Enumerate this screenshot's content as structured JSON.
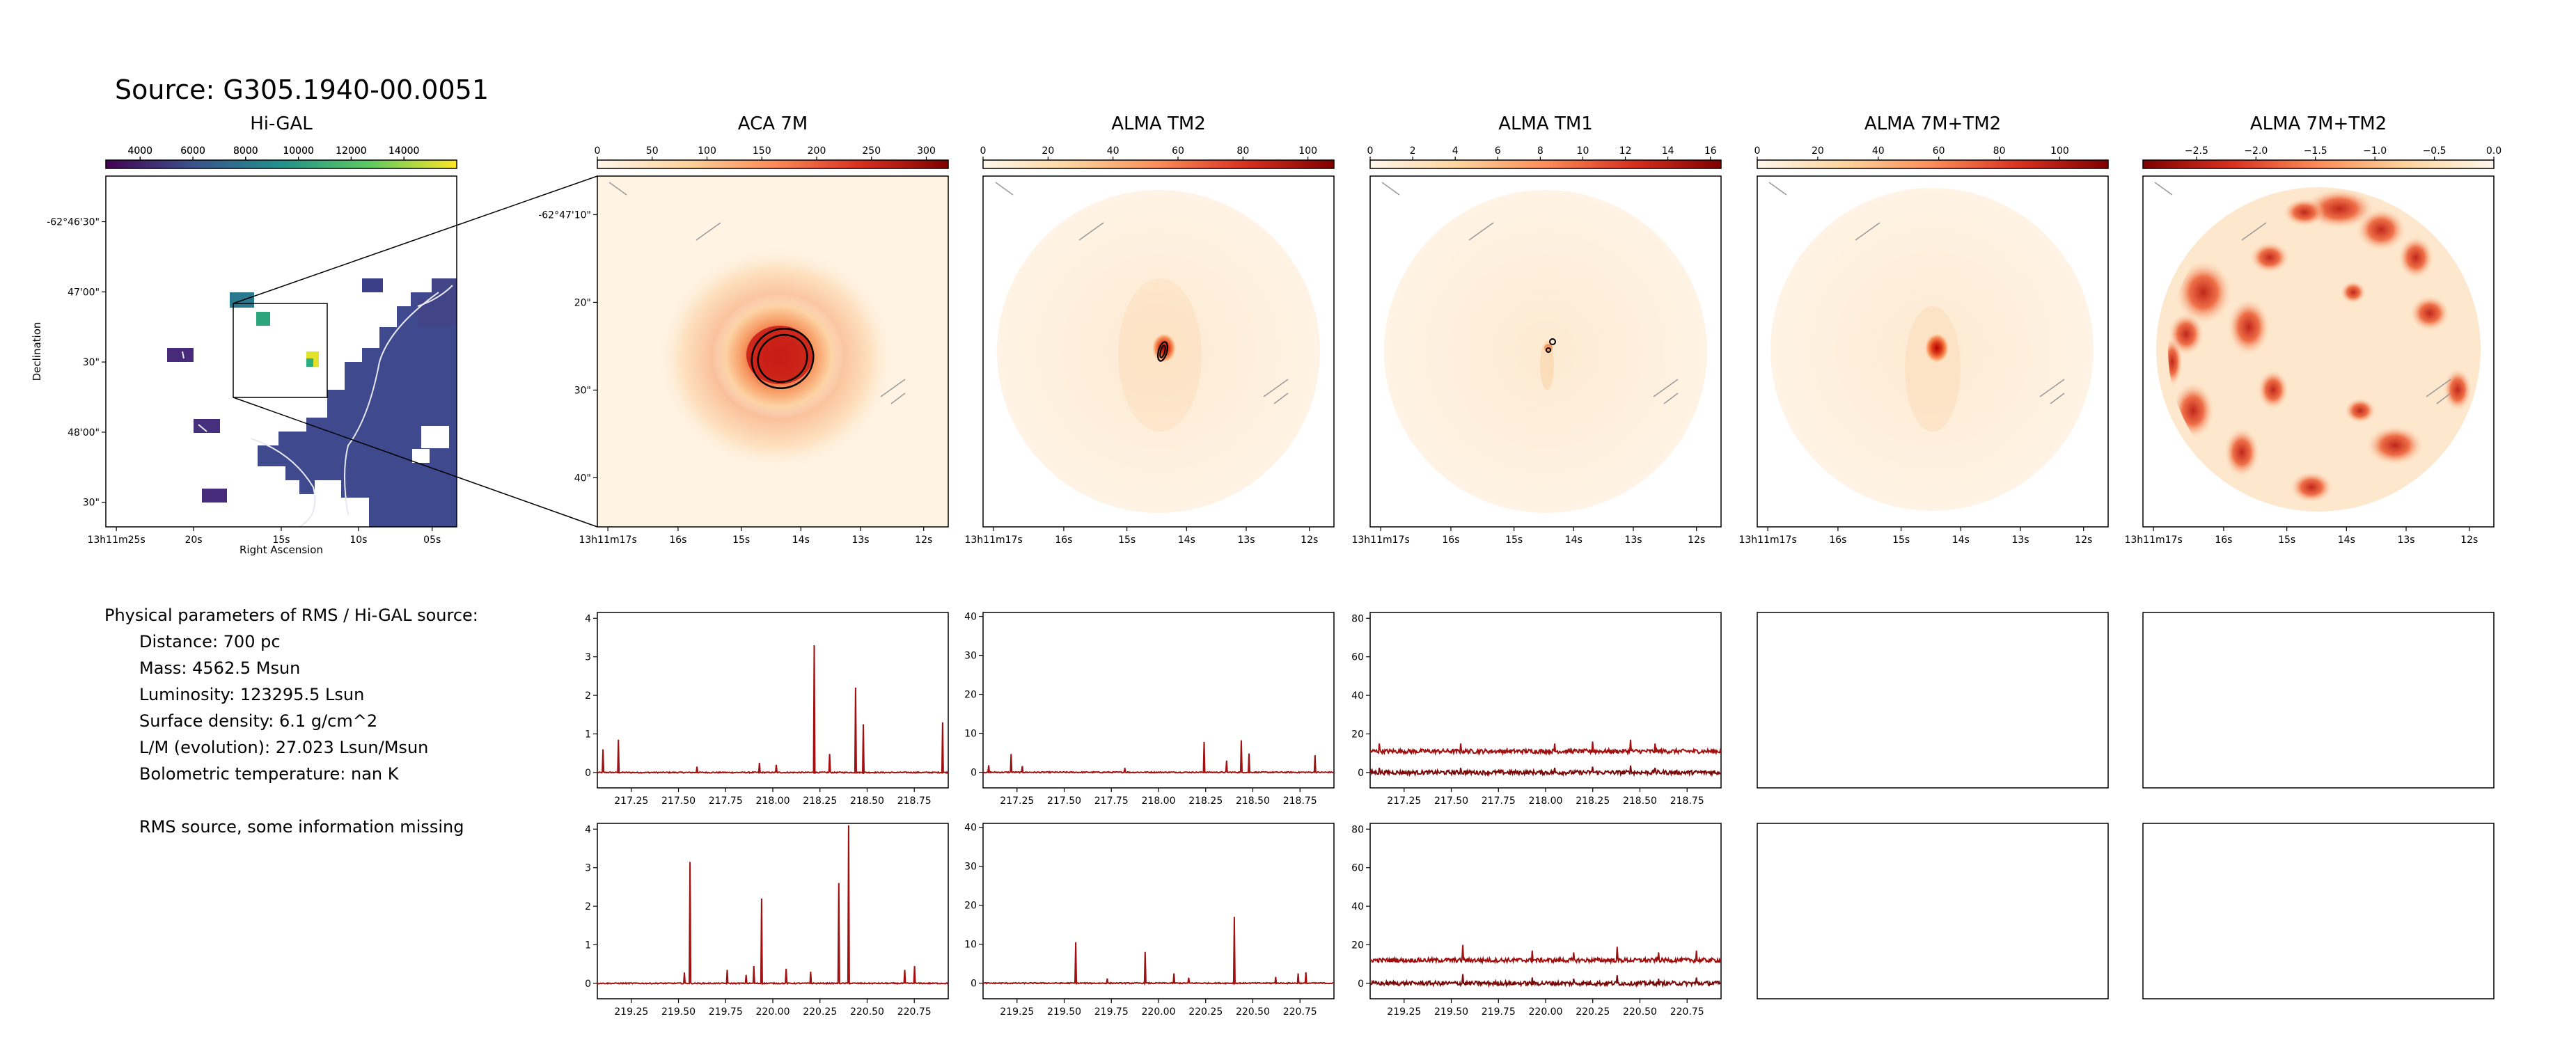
{
  "figure_title": "Source: G305.1940-00.0051",
  "info": {
    "heading": "Physical parameters of RMS / Hi-GAL source:",
    "lines": [
      "Distance: 700 pc",
      "Mass: 4562.5 Msun",
      "Luminosity: 123295.5 Lsun",
      "Surface density: 6.1 g/cm^2",
      "L/M (evolution): 27.023 Lsun/Msun",
      "Bolometric temperature: nan K"
    ],
    "note": "RMS source, some information missing"
  },
  "colormaps": {
    "viridis": [
      "#440154",
      "#3b528b",
      "#21918c",
      "#5ec962",
      "#fde725"
    ],
    "orrd": [
      "#fff7ec",
      "#fdd49e",
      "#fc8d59",
      "#d7301f",
      "#7f0000"
    ],
    "spectrum_line": "#a01010"
  },
  "chart_data": [
    {
      "type": "heatmap",
      "panel": "Hi-GAL",
      "title": "Hi-GAL",
      "colorbar_ticks": [
        "4000",
        "6000",
        "8000",
        "10000",
        "12000",
        "14000"
      ],
      "colorbar_range": [
        2700,
        16000
      ],
      "xlabel": "Right Ascension",
      "ylabel": "Declination",
      "x_ticks": [
        "13h11m25s",
        "20s",
        "15s",
        "10s",
        "05s"
      ],
      "y_ticks": [
        "-62°46'30\"",
        "47'00\"",
        "30\"",
        "48'00\"",
        "30\""
      ],
      "colormap": "viridis"
    },
    {
      "type": "heatmap",
      "panel": "ACA 7M",
      "title": "ACA 7M",
      "colorbar_ticks": [
        "0",
        "50",
        "100",
        "150",
        "200",
        "250",
        "300"
      ],
      "colorbar_range": [
        0,
        320
      ],
      "x_ticks": [
        "13h11m17s",
        "16s",
        "15s",
        "14s",
        "13s",
        "12s"
      ],
      "y_ticks": [
        "-62°47'10\"",
        "20\"",
        "30\"",
        "40\""
      ],
      "colormap": "orrd"
    },
    {
      "type": "heatmap",
      "panel": "ALMA TM2",
      "title": "ALMA TM2",
      "colorbar_ticks": [
        "0",
        "20",
        "40",
        "60",
        "80",
        "100"
      ],
      "colorbar_range": [
        0,
        108
      ],
      "x_ticks": [
        "13h11m17s",
        "16s",
        "15s",
        "14s",
        "13s",
        "12s"
      ],
      "colormap": "orrd"
    },
    {
      "type": "heatmap",
      "panel": "ALMA TM1",
      "title": "ALMA TM1",
      "colorbar_ticks": [
        "0",
        "2",
        "4",
        "6",
        "8",
        "10",
        "12",
        "14",
        "16"
      ],
      "colorbar_range": [
        0,
        16.5
      ],
      "x_ticks": [
        "13h11m17s",
        "16s",
        "15s",
        "14s",
        "13s",
        "12s"
      ],
      "colormap": "orrd"
    },
    {
      "type": "heatmap",
      "panel": "ALMA 7M+TM2",
      "title": "ALMA 7M+TM2",
      "colorbar_ticks": [
        "0",
        "20",
        "40",
        "60",
        "80",
        "100"
      ],
      "colorbar_range": [
        0,
        116
      ],
      "x_ticks": [
        "13h11m17s",
        "16s",
        "15s",
        "14s",
        "13s",
        "12s"
      ],
      "colormap": "orrd"
    },
    {
      "type": "heatmap",
      "panel": "ALMA 7M+TM2 (negative)",
      "title": "ALMA 7M+TM2",
      "colorbar_ticks": [
        "−2.5",
        "−2.0",
        "−1.5",
        "−1.0",
        "−0.5",
        "0.0"
      ],
      "colorbar_range": [
        -2.95,
        0
      ],
      "x_ticks": [
        "13h11m17s",
        "16s",
        "15s",
        "14s",
        "13s",
        "12s"
      ],
      "colormap": "orrd_reversed"
    },
    {
      "type": "line",
      "panel": "ACA 7M spectrum, upper band",
      "x_range": [
        217.07,
        218.93
      ],
      "x_ticks": [
        "217.25",
        "217.50",
        "217.75",
        "218.00",
        "218.25",
        "218.50",
        "218.75"
      ],
      "ylim": [
        -0.4,
        4.15
      ],
      "y_ticks": [
        "0",
        "1",
        "2",
        "3",
        "4"
      ],
      "baseline": [
        0.0
      ],
      "lines": [
        [
          217.1,
          0.6
        ],
        [
          217.18,
          0.85
        ],
        [
          217.6,
          0.15
        ],
        [
          217.93,
          0.25
        ],
        [
          218.02,
          0.2
        ],
        [
          218.22,
          3.3
        ],
        [
          218.3,
          0.48
        ],
        [
          218.44,
          2.2
        ],
        [
          218.48,
          1.25
        ],
        [
          218.9,
          1.3
        ]
      ]
    },
    {
      "type": "line",
      "panel": "ALMA TM2 spectrum, upper band",
      "x_range": [
        217.07,
        218.93
      ],
      "x_ticks": [
        "217.25",
        "217.50",
        "217.75",
        "218.00",
        "218.25",
        "218.50",
        "218.75"
      ],
      "ylim": [
        -4,
        41
      ],
      "y_ticks": [
        "0",
        "10",
        "20",
        "30",
        "40"
      ],
      "baseline": [
        0.0
      ],
      "lines": [
        [
          217.1,
          1.8
        ],
        [
          217.22,
          4.7
        ],
        [
          217.28,
          1.6
        ],
        [
          217.82,
          1.1
        ],
        [
          218.24,
          7.8
        ],
        [
          218.36,
          3.0
        ],
        [
          218.44,
          8.2
        ],
        [
          218.48,
          4.8
        ],
        [
          218.83,
          4.4
        ]
      ]
    },
    {
      "type": "line",
      "panel": "ALMA TM1 spectrum, upper band",
      "x_range": [
        217.07,
        218.93
      ],
      "x_ticks": [
        "217.25",
        "217.50",
        "217.75",
        "218.00",
        "218.25",
        "218.50",
        "218.75"
      ],
      "ylim": [
        -8,
        83
      ],
      "y_ticks": [
        "0",
        "20",
        "40",
        "60",
        "80"
      ],
      "baseline": [
        11,
        0
      ],
      "lines": [
        [
          217.12,
          4
        ],
        [
          217.55,
          4
        ],
        [
          218.05,
          4
        ],
        [
          218.25,
          5
        ],
        [
          218.45,
          6
        ],
        [
          218.58,
          4
        ]
      ]
    },
    {
      "type": "line",
      "panel": "ACA 7M spectrum, lower band",
      "x_range": [
        219.07,
        220.93
      ],
      "x_ticks": [
        "219.25",
        "219.50",
        "219.75",
        "220.00",
        "220.25",
        "220.50",
        "220.75"
      ],
      "ylim": [
        -0.4,
        4.15
      ],
      "y_ticks": [
        "0",
        "1",
        "2",
        "3",
        "4"
      ],
      "baseline": [
        0.0
      ],
      "lines": [
        [
          219.53,
          0.28
        ],
        [
          219.56,
          3.15
        ],
        [
          219.76,
          0.35
        ],
        [
          219.86,
          0.22
        ],
        [
          219.9,
          0.45
        ],
        [
          219.94,
          2.2
        ],
        [
          220.07,
          0.38
        ],
        [
          220.2,
          0.3
        ],
        [
          220.35,
          2.6
        ],
        [
          220.4,
          4.1
        ],
        [
          220.7,
          0.35
        ],
        [
          220.75,
          0.45
        ]
      ]
    },
    {
      "type": "line",
      "panel": "ALMA TM2 spectrum, lower band",
      "x_range": [
        219.07,
        220.93
      ],
      "x_ticks": [
        "219.25",
        "219.50",
        "219.75",
        "220.00",
        "220.25",
        "220.50",
        "220.75"
      ],
      "ylim": [
        -4,
        41
      ],
      "y_ticks": [
        "0",
        "10",
        "20",
        "30",
        "40"
      ],
      "baseline": [
        0.0
      ],
      "lines": [
        [
          219.56,
          10.5
        ],
        [
          219.73,
          1.2
        ],
        [
          219.93,
          8.0
        ],
        [
          220.08,
          2.5
        ],
        [
          220.16,
          1.4
        ],
        [
          220.4,
          17.0
        ],
        [
          220.62,
          1.6
        ],
        [
          220.74,
          2.5
        ],
        [
          220.78,
          2.8
        ]
      ]
    },
    {
      "type": "line",
      "panel": "ALMA TM1 spectrum, lower band",
      "x_range": [
        219.07,
        220.93
      ],
      "x_ticks": [
        "219.25",
        "219.50",
        "219.75",
        "220.00",
        "220.25",
        "220.50",
        "220.75"
      ],
      "ylim": [
        -8,
        83
      ],
      "y_ticks": [
        "0",
        "20",
        "40",
        "60",
        "80"
      ],
      "baseline": [
        12,
        0
      ],
      "lines": [
        [
          219.56,
          8
        ],
        [
          219.93,
          5
        ],
        [
          220.15,
          4
        ],
        [
          220.38,
          7
        ],
        [
          220.6,
          4
        ],
        [
          220.8,
          5
        ]
      ]
    }
  ]
}
